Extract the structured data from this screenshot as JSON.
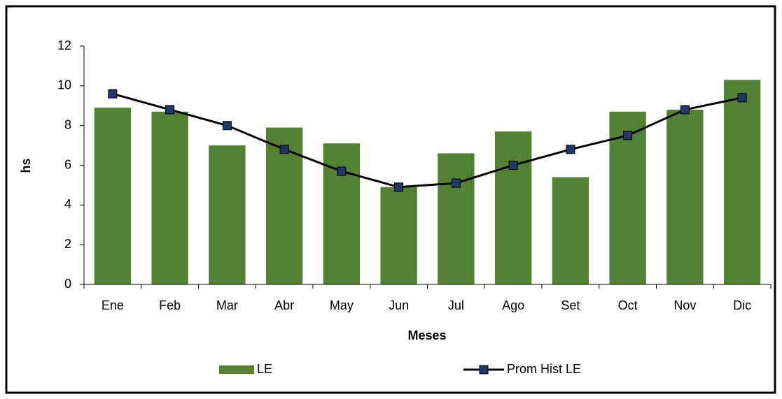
{
  "chart_data": {
    "type": "bar",
    "x_label": "Meses",
    "y_label": "hs",
    "categories": [
      "Ene",
      "Feb",
      "Mar",
      "Abr",
      "May",
      "Jun",
      "Jul",
      "Ago",
      "Set",
      "Oct",
      "Nov",
      "Dic"
    ],
    "series": [
      {
        "name": "LE",
        "type": "bar",
        "color": "#548235",
        "values": [
          8.9,
          8.7,
          7.0,
          7.9,
          7.1,
          4.9,
          6.6,
          7.7,
          5.4,
          8.7,
          8.8,
          10.3
        ]
      },
      {
        "name": "Prom Hist LE",
        "type": "line",
        "color": "#000000",
        "marker_color": "#1f3864",
        "values": [
          9.6,
          8.8,
          8.0,
          6.8,
          5.7,
          4.9,
          5.1,
          6.0,
          6.8,
          7.5,
          8.8,
          9.4
        ]
      }
    ],
    "ylim": [
      0,
      12
    ],
    "yticks": [
      0,
      2,
      4,
      6,
      8,
      10,
      12
    ],
    "grid": false,
    "legend": "bottom"
  }
}
